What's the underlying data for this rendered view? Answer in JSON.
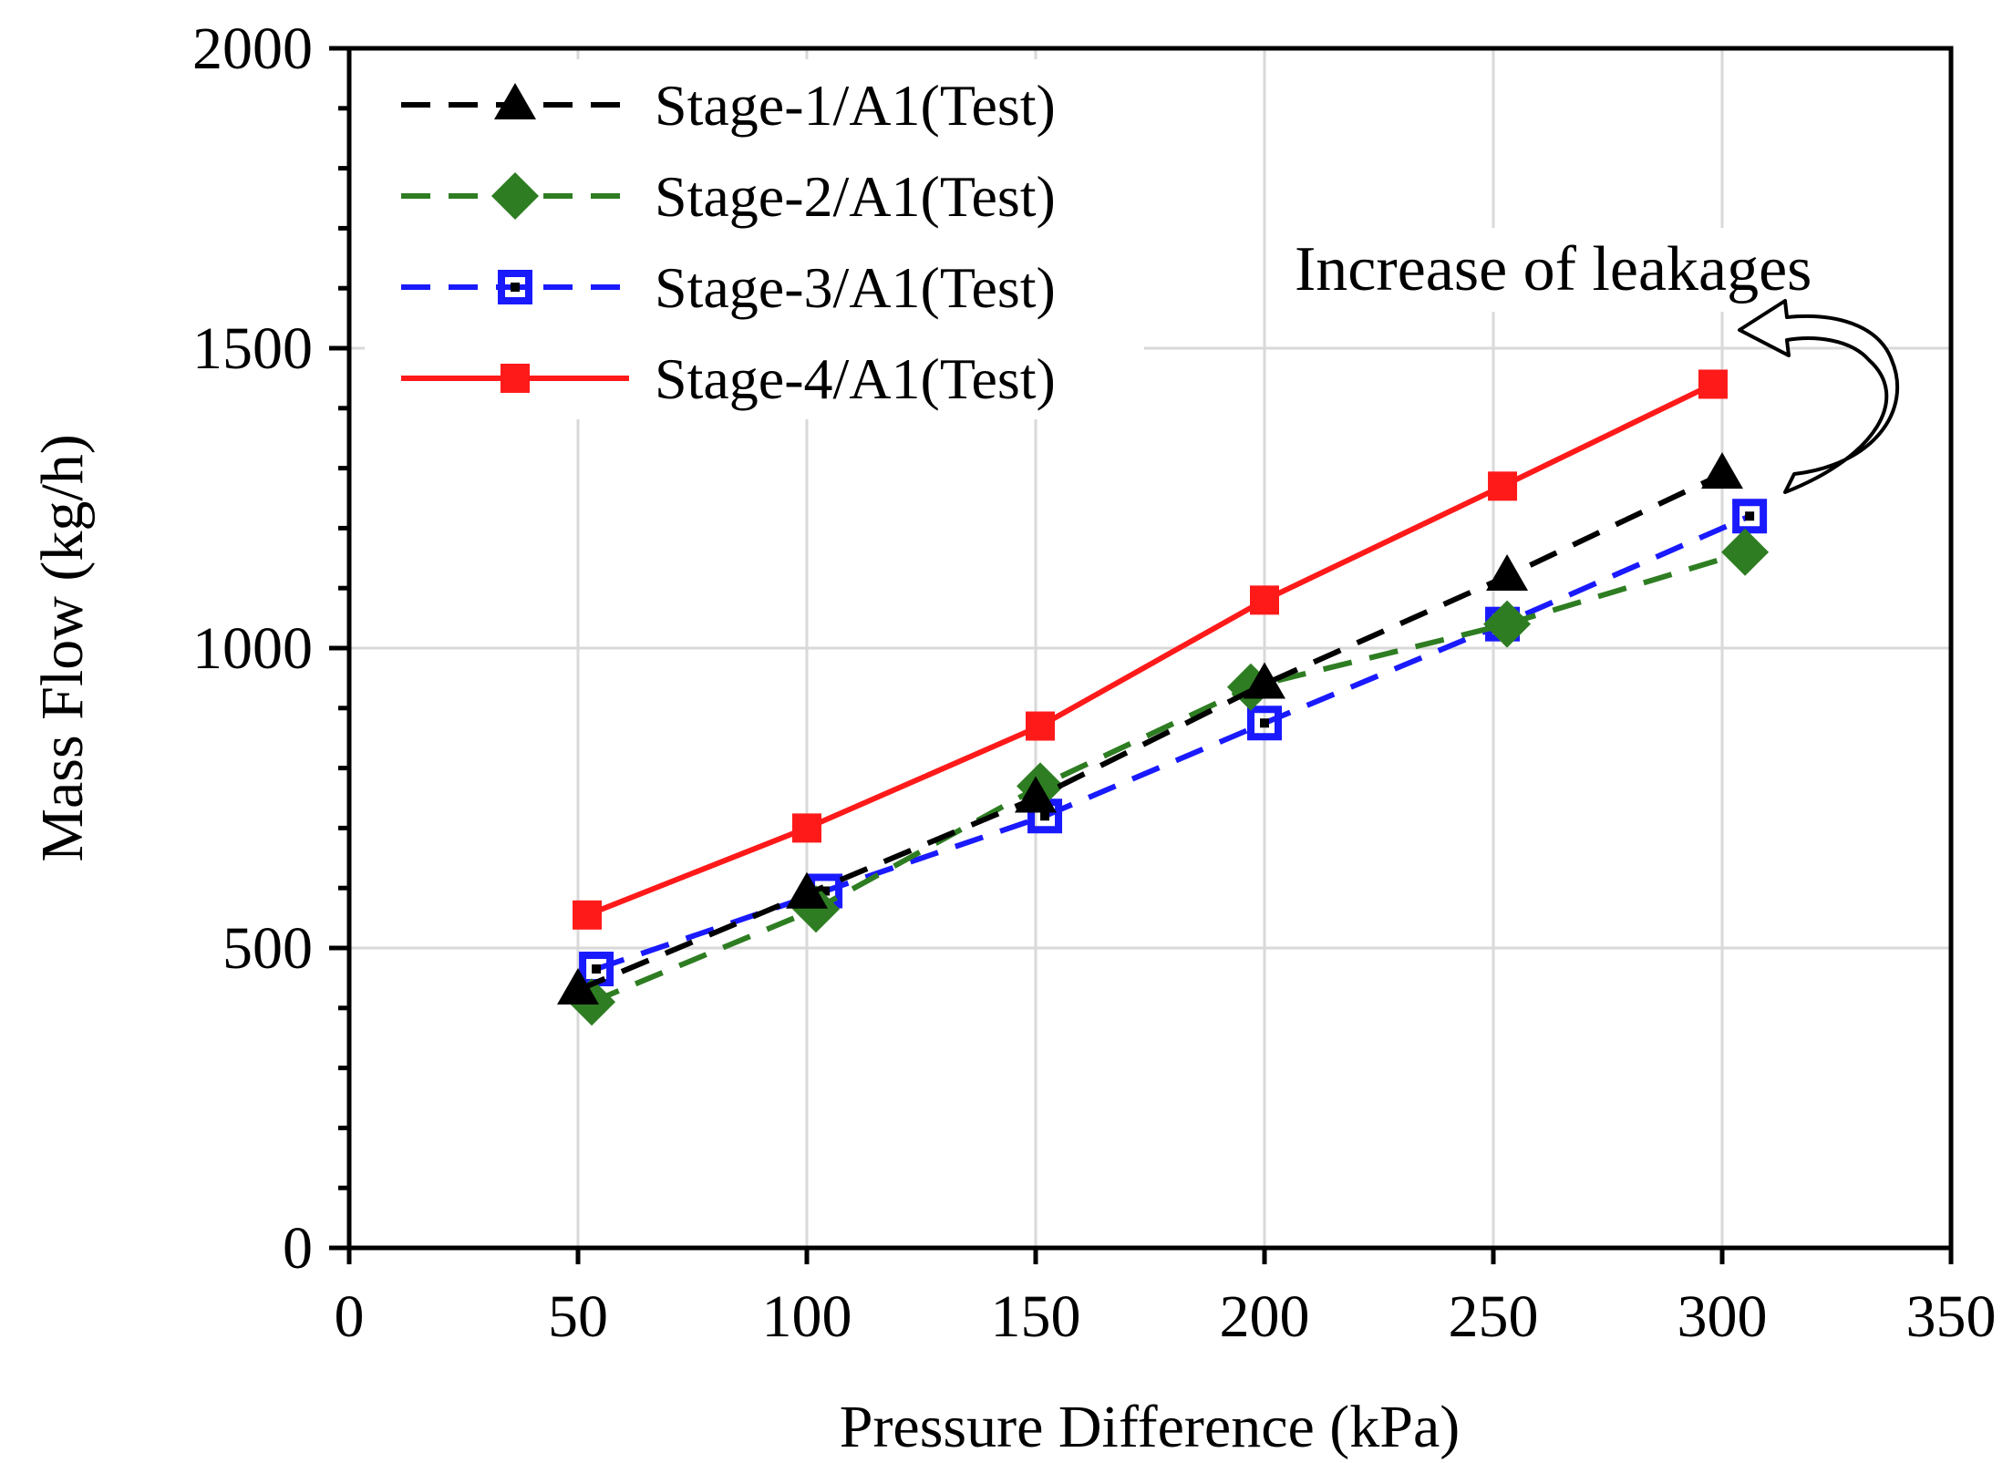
{
  "chart_data": {
    "type": "line",
    "title": "",
    "xlabel": "Pressure Difference (kPa)",
    "ylabel": "Mass Flow (kg/h)",
    "xlim": [
      0,
      350
    ],
    "ylim": [
      0,
      2000
    ],
    "xticks": [
      "0",
      "50",
      "100",
      "150",
      "200",
      "250",
      "300",
      "350"
    ],
    "yticks": [
      "0",
      "500",
      "1000",
      "1500",
      "2000"
    ],
    "grid": true,
    "legend_position": "top-left",
    "series": [
      {
        "name": "Stage-1/A1(Test)",
        "color": "#000000",
        "line_style": "dashed",
        "marker": "triangle",
        "x": [
          50,
          100,
          150,
          200,
          253,
          300
        ],
        "y": [
          430,
          590,
          750,
          940,
          1120,
          1290
        ]
      },
      {
        "name": "Stage-2/A1(Test)",
        "color": "#2e7d22",
        "line_style": "dashed",
        "marker": "diamond",
        "x": [
          53,
          102,
          151,
          197,
          253,
          305
        ],
        "y": [
          410,
          565,
          770,
          935,
          1040,
          1160
        ]
      },
      {
        "name": "Stage-3/A1(Test)",
        "color": "#1a1aff",
        "line_style": "dashed",
        "marker": "square-dot",
        "x": [
          54,
          104,
          152,
          200,
          252,
          306
        ],
        "y": [
          465,
          595,
          720,
          875,
          1040,
          1220
        ]
      },
      {
        "name": "Stage-4/A1(Test)",
        "color": "#ff1a1a",
        "line_style": "solid",
        "marker": "square",
        "x": [
          52,
          100,
          151,
          200,
          252,
          298
        ],
        "y": [
          555,
          700,
          870,
          1080,
          1270,
          1440
        ]
      }
    ],
    "annotations": [
      {
        "text": "Increase of leakages",
        "icon": "curved-arrow-icon"
      }
    ]
  }
}
